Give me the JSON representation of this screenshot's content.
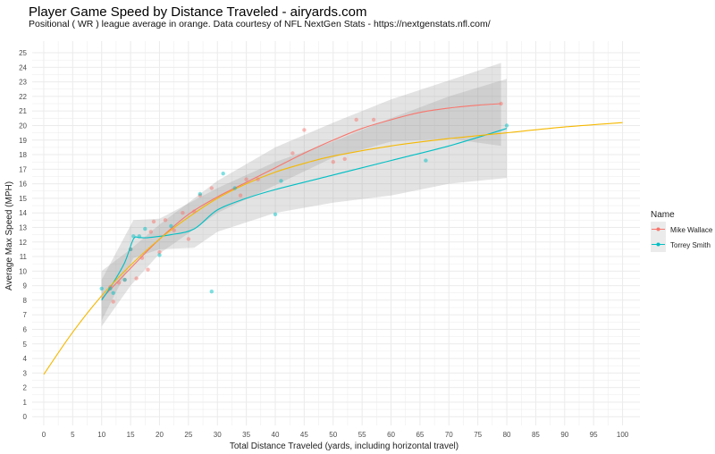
{
  "title": "Player Game Speed by Distance Traveled - airyards.com",
  "subtitle": "Positional ( WR ) league average in orange. Data courtesy of NFL NextGen Stats - https://nextgenstats.nfl.com/",
  "colors": {
    "mike_wallace": "#F8766D",
    "torrey_smith": "#00BFC4",
    "league_average": "#F5B800",
    "ribbon": "#999999",
    "grid": "#EBEBEB"
  },
  "chart_data": {
    "type": "scatter",
    "title": "Player Game Speed by Distance Traveled - airyards.com",
    "xlabel": "Total Distance Traveled (yards, including horizontal travel)",
    "ylabel": "Average Max Speed (MPH)",
    "xlim": [
      -2,
      103
    ],
    "ylim": [
      -0.6,
      25.8
    ],
    "x_ticks": [
      0,
      5,
      10,
      15,
      20,
      25,
      30,
      35,
      40,
      45,
      50,
      55,
      60,
      65,
      70,
      75,
      80,
      85,
      90,
      95,
      100
    ],
    "y_ticks": [
      0,
      1,
      2,
      3,
      4,
      5,
      6,
      7,
      8,
      9,
      10,
      11,
      12,
      13,
      14,
      15,
      16,
      17,
      18,
      19,
      20,
      21,
      22,
      23,
      24,
      25
    ],
    "grid": true,
    "legend": {
      "title": "Name",
      "position": "right",
      "entries": [
        "Mike Wallace",
        "Torrey Smith"
      ]
    },
    "series": [
      {
        "name": "Mike Wallace",
        "points": [
          {
            "x": 11.5,
            "y": 8.9
          },
          {
            "x": 12,
            "y": 7.9
          },
          {
            "x": 13,
            "y": 9.2
          },
          {
            "x": 14,
            "y": 9.4
          },
          {
            "x": 15,
            "y": 11.5
          },
          {
            "x": 16,
            "y": 9.5
          },
          {
            "x": 17,
            "y": 10.9
          },
          {
            "x": 18,
            "y": 10.1
          },
          {
            "x": 18.5,
            "y": 12.7
          },
          {
            "x": 19,
            "y": 13.4
          },
          {
            "x": 20,
            "y": 11.3
          },
          {
            "x": 21,
            "y": 13.5
          },
          {
            "x": 22.5,
            "y": 12.8
          },
          {
            "x": 24,
            "y": 14
          },
          {
            "x": 25,
            "y": 12.2
          },
          {
            "x": 26,
            "y": 14.1
          },
          {
            "x": 27,
            "y": 15.2
          },
          {
            "x": 29,
            "y": 15.7
          },
          {
            "x": 34,
            "y": 15.2
          },
          {
            "x": 35,
            "y": 16.3
          },
          {
            "x": 37,
            "y": 16.3
          },
          {
            "x": 43,
            "y": 18.1
          },
          {
            "x": 45,
            "y": 19.7
          },
          {
            "x": 50,
            "y": 17.5
          },
          {
            "x": 52,
            "y": 17.7
          },
          {
            "x": 54,
            "y": 20.4
          },
          {
            "x": 57,
            "y": 20.4
          },
          {
            "x": 79,
            "y": 21.5
          }
        ],
        "trend": [
          {
            "x": 10,
            "y": 8.1
          },
          {
            "x": 15,
            "y": 10.2
          },
          {
            "x": 20,
            "y": 12.2
          },
          {
            "x": 25,
            "y": 13.9
          },
          {
            "x": 30,
            "y": 15.1
          },
          {
            "x": 35,
            "y": 16.1
          },
          {
            "x": 40,
            "y": 17.1
          },
          {
            "x": 45,
            "y": 18.1
          },
          {
            "x": 50,
            "y": 19
          },
          {
            "x": 55,
            "y": 19.8
          },
          {
            "x": 60,
            "y": 20.4
          },
          {
            "x": 65,
            "y": 20.9
          },
          {
            "x": 70,
            "y": 21.2
          },
          {
            "x": 75,
            "y": 21.4
          },
          {
            "x": 79,
            "y": 21.5
          }
        ],
        "band_upper": [
          {
            "x": 10,
            "y": 10
          },
          {
            "x": 15,
            "y": 11.5
          },
          {
            "x": 20,
            "y": 13.2
          },
          {
            "x": 30,
            "y": 16.2
          },
          {
            "x": 40,
            "y": 18.5
          },
          {
            "x": 50,
            "y": 20.2
          },
          {
            "x": 60,
            "y": 21.8
          },
          {
            "x": 70,
            "y": 23.1
          },
          {
            "x": 79,
            "y": 24.3
          }
        ],
        "band_lower": [
          {
            "x": 10,
            "y": 6.2
          },
          {
            "x": 15,
            "y": 9
          },
          {
            "x": 20,
            "y": 11.2
          },
          {
            "x": 30,
            "y": 14
          },
          {
            "x": 40,
            "y": 15.9
          },
          {
            "x": 50,
            "y": 17.8
          },
          {
            "x": 60,
            "y": 18.9
          },
          {
            "x": 70,
            "y": 19.1
          },
          {
            "x": 79,
            "y": 18.6
          }
        ]
      },
      {
        "name": "Torrey Smith",
        "points": [
          {
            "x": 10,
            "y": 8.8
          },
          {
            "x": 11.5,
            "y": 8.8
          },
          {
            "x": 12,
            "y": 8.5
          },
          {
            "x": 14,
            "y": 9.4
          },
          {
            "x": 15,
            "y": 11.5
          },
          {
            "x": 15.5,
            "y": 12.4
          },
          {
            "x": 16.5,
            "y": 12.4
          },
          {
            "x": 17.5,
            "y": 12.9
          },
          {
            "x": 20,
            "y": 11.1
          },
          {
            "x": 22,
            "y": 13.1
          },
          {
            "x": 27,
            "y": 15.3
          },
          {
            "x": 29,
            "y": 8.6
          },
          {
            "x": 31,
            "y": 16.7
          },
          {
            "x": 33,
            "y": 15.7
          },
          {
            "x": 40,
            "y": 13.9
          },
          {
            "x": 41,
            "y": 16.2
          },
          {
            "x": 66,
            "y": 17.6
          },
          {
            "x": 80,
            "y": 20
          }
        ],
        "trend": [
          {
            "x": 10,
            "y": 8
          },
          {
            "x": 12,
            "y": 9.2
          },
          {
            "x": 14,
            "y": 10.6
          },
          {
            "x": 15.5,
            "y": 12.2
          },
          {
            "x": 16.5,
            "y": 12.3
          },
          {
            "x": 18,
            "y": 12.3
          },
          {
            "x": 22,
            "y": 12.5
          },
          {
            "x": 26,
            "y": 12.9
          },
          {
            "x": 30,
            "y": 14.2
          },
          {
            "x": 35,
            "y": 15
          },
          {
            "x": 40,
            "y": 15.6
          },
          {
            "x": 50,
            "y": 16.6
          },
          {
            "x": 60,
            "y": 17.6
          },
          {
            "x": 70,
            "y": 18.6
          },
          {
            "x": 80,
            "y": 19.8
          }
        ],
        "band_upper": [
          {
            "x": 10,
            "y": 9.4
          },
          {
            "x": 15.5,
            "y": 13.5
          },
          {
            "x": 20,
            "y": 13.6
          },
          {
            "x": 30,
            "y": 15.7
          },
          {
            "x": 40,
            "y": 17.5
          },
          {
            "x": 50,
            "y": 18.9
          },
          {
            "x": 60,
            "y": 20.5
          },
          {
            "x": 70,
            "y": 22
          },
          {
            "x": 80,
            "y": 23.2
          }
        ],
        "band_lower": [
          {
            "x": 10,
            "y": 6.6
          },
          {
            "x": 15.5,
            "y": 10.9
          },
          {
            "x": 20,
            "y": 11.5
          },
          {
            "x": 26,
            "y": 11.6
          },
          {
            "x": 30,
            "y": 12.7
          },
          {
            "x": 40,
            "y": 14
          },
          {
            "x": 50,
            "y": 14.7
          },
          {
            "x": 60,
            "y": 15.2
          },
          {
            "x": 70,
            "y": 16
          },
          {
            "x": 80,
            "y": 16.4
          }
        ]
      },
      {
        "name": "League average (WR)",
        "trend": [
          {
            "x": 0,
            "y": 2.9
          },
          {
            "x": 5,
            "y": 5.8
          },
          {
            "x": 10,
            "y": 8.3
          },
          {
            "x": 15,
            "y": 10.4
          },
          {
            "x": 20,
            "y": 12.2
          },
          {
            "x": 25,
            "y": 13.7
          },
          {
            "x": 30,
            "y": 15
          },
          {
            "x": 35,
            "y": 16
          },
          {
            "x": 40,
            "y": 16.8
          },
          {
            "x": 45,
            "y": 17.4
          },
          {
            "x": 50,
            "y": 17.9
          },
          {
            "x": 60,
            "y": 18.6
          },
          {
            "x": 70,
            "y": 19.1
          },
          {
            "x": 80,
            "y": 19.5
          },
          {
            "x": 90,
            "y": 19.9
          },
          {
            "x": 100,
            "y": 20.2
          }
        ]
      }
    ]
  }
}
